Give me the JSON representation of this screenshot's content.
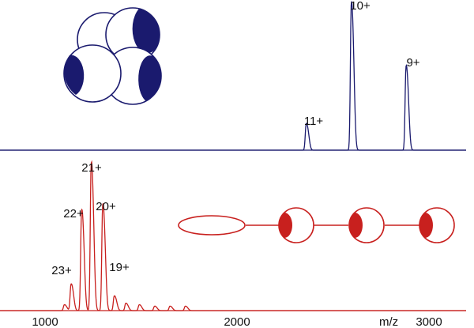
{
  "chart_data": [
    {
      "type": "line",
      "name": "top-spectrum",
      "color": "#1a1a6e",
      "xlabel": "",
      "ylabel": "",
      "xlim": [
        900,
        3100
      ],
      "ylim": [
        0,
        100
      ],
      "peaks": [
        {
          "label": "11+",
          "x": 2360,
          "height": 18
        },
        {
          "label": "10+",
          "x": 2595,
          "height": 100
        },
        {
          "label": "9+",
          "x": 2880,
          "height": 57
        }
      ],
      "inset": {
        "type": "compact-complex",
        "subunits": 4,
        "fill": "#1a1a6e"
      }
    },
    {
      "type": "line",
      "name": "bottom-spectrum",
      "color": "#c8201e",
      "xlabel": "m/z",
      "xlim": [
        900,
        3100
      ],
      "ylim": [
        0,
        100
      ],
      "xticks": [
        "1000",
        "2000",
        "3000"
      ],
      "peaks": [
        {
          "label": "23+",
          "x": 1135,
          "height": 18
        },
        {
          "label": "22+",
          "x": 1190,
          "height": 68
        },
        {
          "label": "21+",
          "x": 1240,
          "height": 100
        },
        {
          "label": "20+",
          "x": 1300,
          "height": 72
        },
        {
          "label": "19+",
          "x": 1360,
          "height": 10
        }
      ],
      "minor_peaks": [
        {
          "x": 1100,
          "height": 4
        },
        {
          "x": 1420,
          "height": 5
        },
        {
          "x": 1490,
          "height": 4
        },
        {
          "x": 1570,
          "height": 3
        },
        {
          "x": 1650,
          "height": 3
        },
        {
          "x": 1730,
          "height": 3
        }
      ],
      "inset": {
        "type": "extended-chain",
        "subunits": 4,
        "fill": "#c8201e"
      }
    }
  ]
}
